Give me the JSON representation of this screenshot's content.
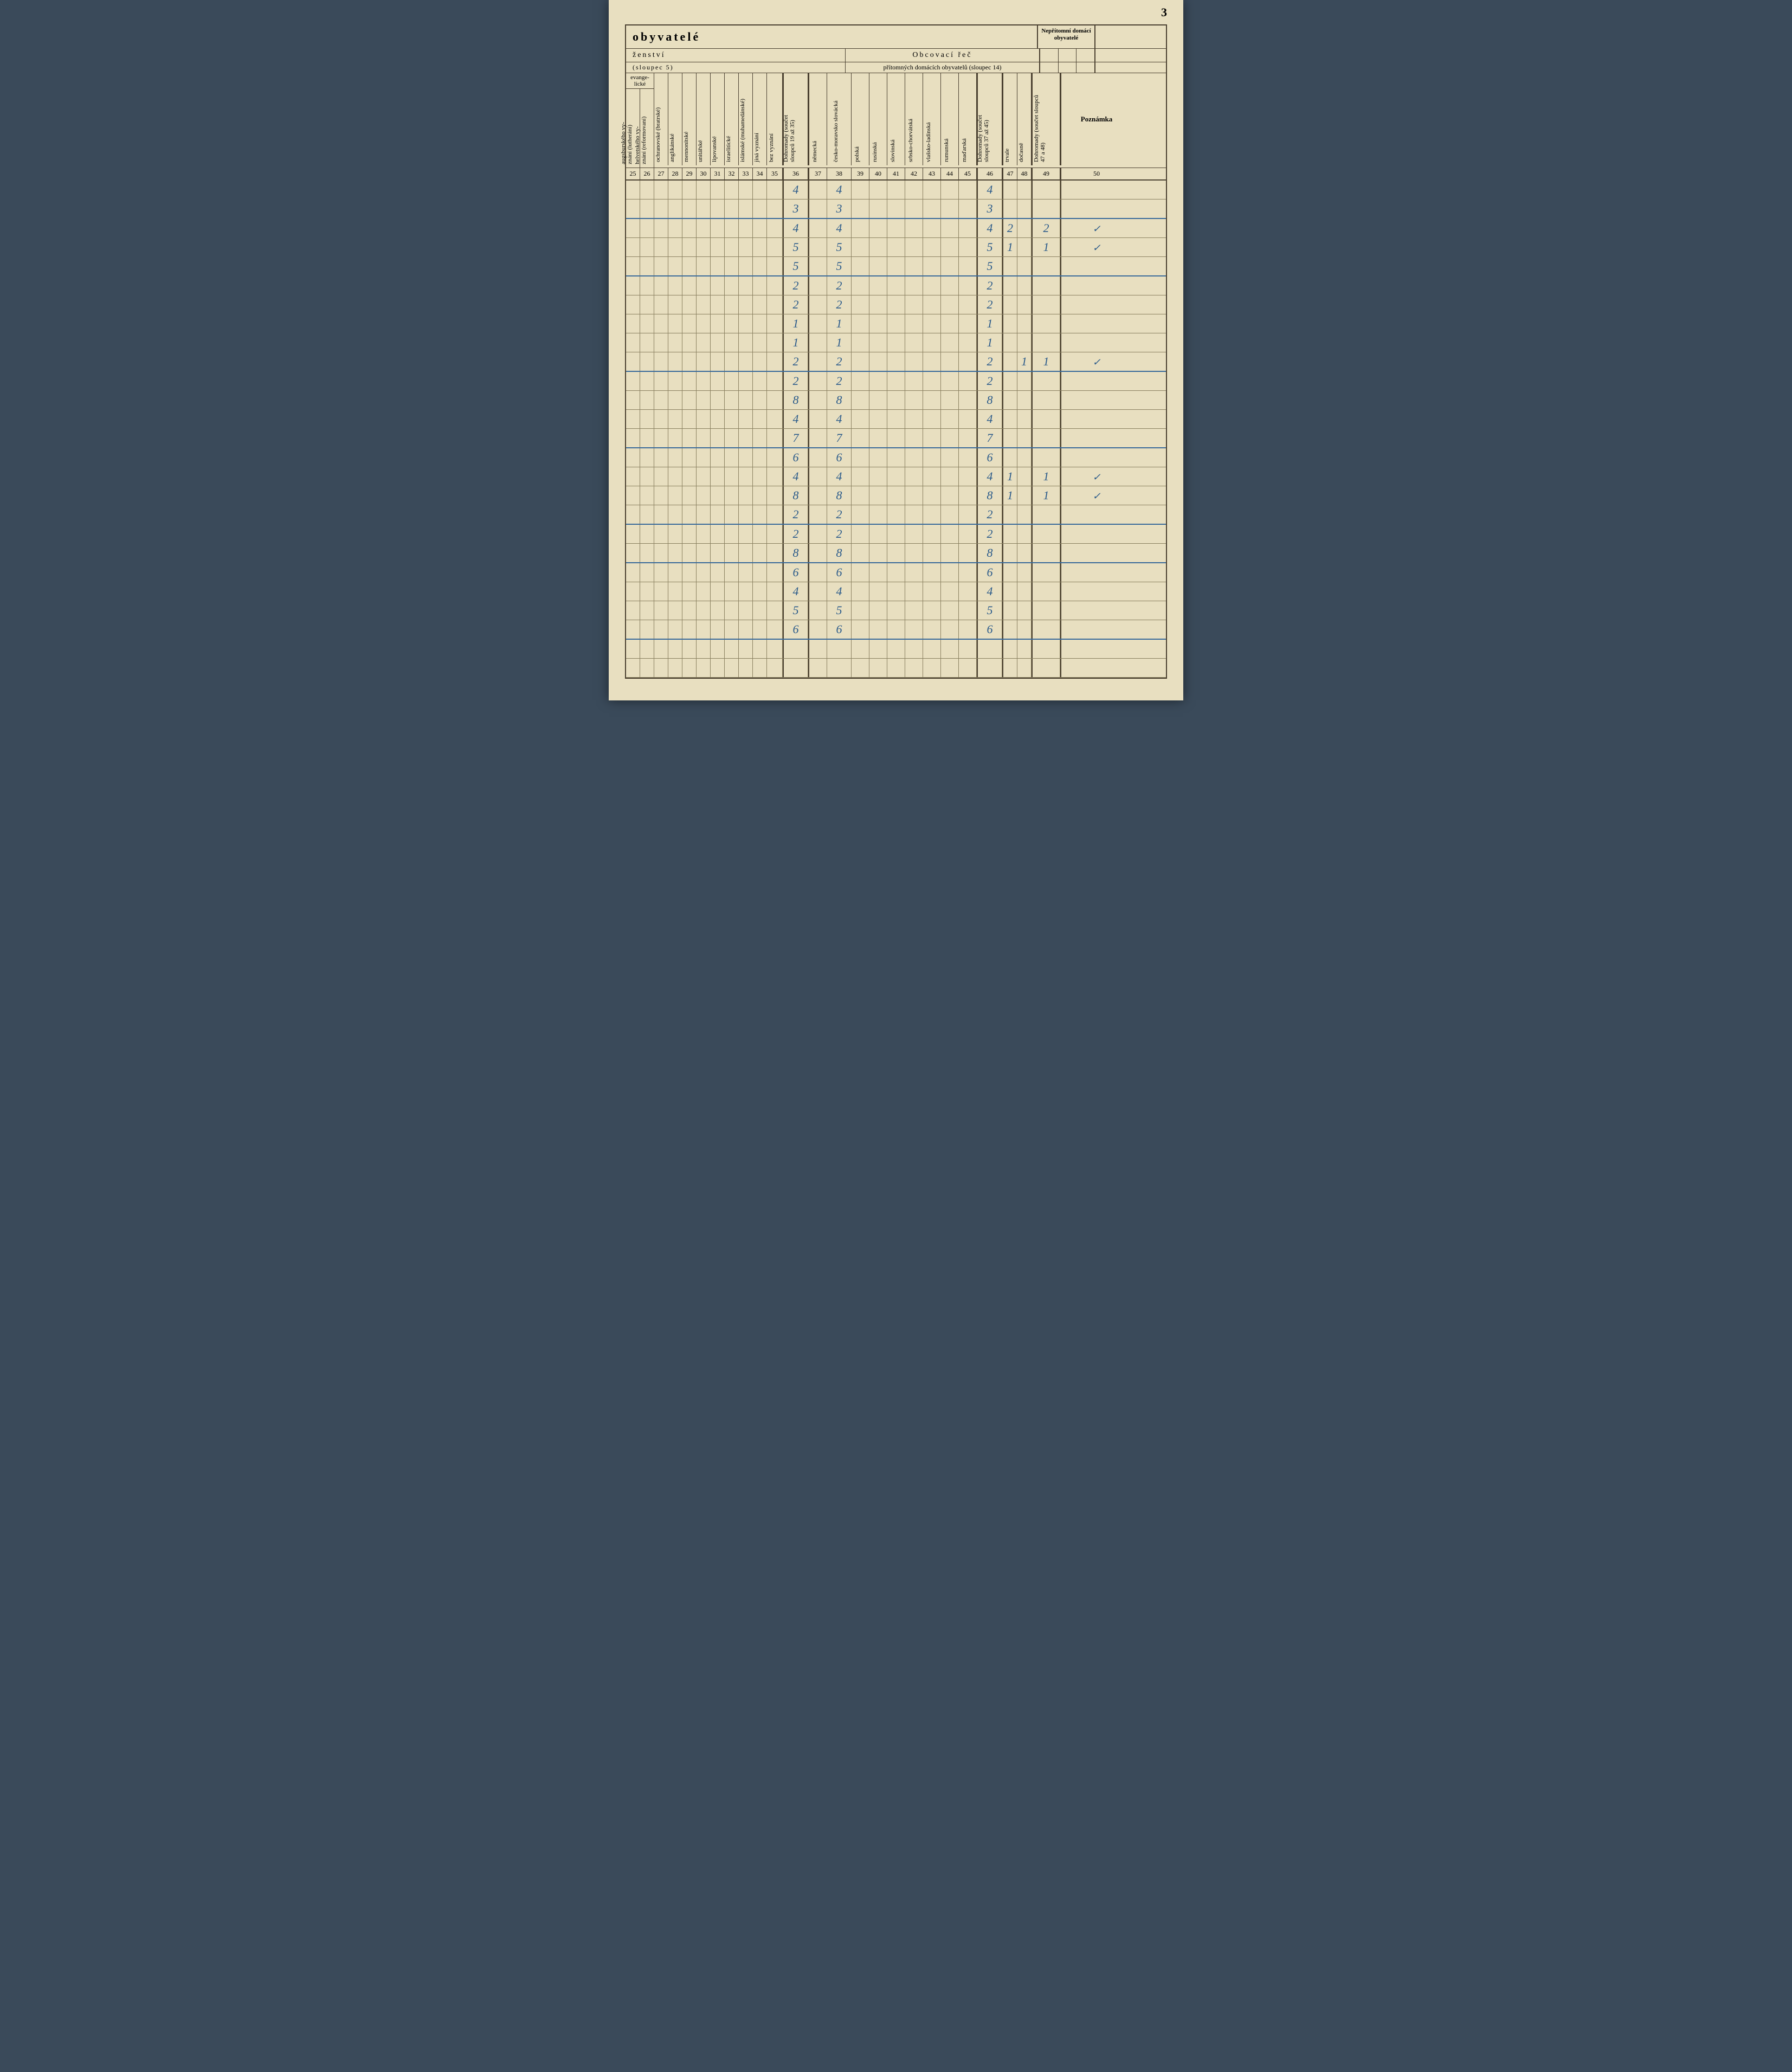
{
  "page_number": "3",
  "title": "obyvatelé",
  "section_left": "ženství",
  "section_right": "Obcovací řeč",
  "absent_title": "Nepřítomní domácí obyvatelé",
  "note_title": "Poznámka",
  "sloupec_left": "(sloupec 5)",
  "sloupec_right": "přítomných domácích obyvatelů (sloupec 14)",
  "evang_label": "evange-\nlické",
  "nepr_label": "ne-\npřítomní",
  "headers": {
    "c25": "augsburského vy-\nznání (lutheráni)",
    "c26": "helvetského vy-\nznání (reformovaní)",
    "c27": "ochranovské (bratrské)",
    "c28": "anglikánské",
    "c29": "mennonítské",
    "c30": "unitářské",
    "c31": "lipovanské",
    "c32": "israelitické",
    "c33": "islámské (muhamedánské)",
    "c34": "jiná vyznání",
    "c35": "bez vyznání",
    "c36": "Dohromady (součet\nsloupců 19 až 35)",
    "c37": "německá",
    "c38": "česko-moravsko slovácká",
    "c39": "polská",
    "c40": "rusínská",
    "c41": "slovinská",
    "c42": "srbsko-chorvátská",
    "c43": "vlašsko-ladinská",
    "c44": "rumunská",
    "c45": "maďarská",
    "c46": "Dohromady (součet\nsloupců 37 až 45)",
    "c47": "trvale",
    "c48": "dočasně",
    "c49": "Dohromady (součet sloupců\n47 a 48)"
  },
  "col_nums": [
    "25",
    "26",
    "27",
    "28",
    "29",
    "30",
    "31",
    "32",
    "33",
    "34",
    "35",
    "36",
    "37",
    "38",
    "39",
    "40",
    "41",
    "42",
    "43",
    "44",
    "45",
    "46",
    "47",
    "48",
    "49",
    "50"
  ],
  "rows": [
    {
      "c36": "4",
      "c38": "4",
      "c46": "4",
      "thick": false
    },
    {
      "c36": "3",
      "c38": "3",
      "c46": "3",
      "thick": true
    },
    {
      "c36": "4",
      "c38": "4",
      "c46": "4",
      "c47": "2",
      "c49": "2",
      "c50": "✓",
      "thick": false
    },
    {
      "c36": "5",
      "c38": "5",
      "c46": "5",
      "c47": "1",
      "c49": "1",
      "c50": "✓",
      "thick": false
    },
    {
      "c36": "5",
      "c38": "5",
      "c46": "5",
      "thick": true
    },
    {
      "c36": "2",
      "c38": "2",
      "c46": "2",
      "thick": false
    },
    {
      "c36": "2",
      "c38": "2",
      "c46": "2",
      "thick": false
    },
    {
      "c36": "1",
      "c38": "1",
      "c46": "1",
      "thick": false
    },
    {
      "c36": "1",
      "c38": "1",
      "c46": "1",
      "thick": false
    },
    {
      "c36": "2",
      "c38": "2",
      "c46": "2",
      "c48": "1",
      "c49": "1",
      "c50": "✓",
      "thick": true
    },
    {
      "c36": "2",
      "c38": "2",
      "c46": "2",
      "thick": false
    },
    {
      "c36": "8",
      "c38": "8",
      "c46": "8",
      "thick": false
    },
    {
      "c36": "4",
      "c38": "4",
      "c46": "4",
      "thick": false
    },
    {
      "c36": "7",
      "c38": "7",
      "c46": "7",
      "thick": true
    },
    {
      "c36": "6",
      "c38": "6",
      "c46": "6",
      "thick": false
    },
    {
      "c36": "4",
      "c38": "4",
      "c46": "4",
      "c47": "1",
      "c49": "1",
      "c50": "✓",
      "thick": false
    },
    {
      "c36": "8",
      "c38": "8",
      "c46": "8",
      "c47": "1",
      "c49": "1",
      "c50": "✓",
      "thick": false
    },
    {
      "c36": "2",
      "c38": "2",
      "c46": "2",
      "thick": true
    },
    {
      "c36": "2",
      "c38": "2",
      "c46": "2",
      "thick": false
    },
    {
      "c36": "8",
      "c38": "8",
      "c46": "8",
      "thick": true
    },
    {
      "c36": "6",
      "c38": "6",
      "c46": "6",
      "thick": false
    },
    {
      "c36": "4",
      "c38": "4",
      "c46": "4",
      "thick": false
    },
    {
      "c36": "5",
      "c38": "5",
      "c46": "5",
      "thick": false
    },
    {
      "c36": "6",
      "c38": "6",
      "c46": "6",
      "thick": true
    },
    {
      "thick": false
    },
    {
      "thick": false
    }
  ],
  "col_widths": {
    "25": 25,
    "26": 25,
    "27": 25,
    "28": 25,
    "29": 25,
    "30": 25,
    "31": 25,
    "32": 25,
    "33": 25,
    "34": 25,
    "35": 28,
    "36": 44,
    "37": 32,
    "38": 44,
    "39": 32,
    "40": 32,
    "41": 32,
    "42": 32,
    "43": 32,
    "44": 32,
    "45": 32,
    "46": 44,
    "47": 25,
    "48": 25,
    "49": 50,
    "50": 130
  },
  "thick_left_cols": [
    "36",
    "37",
    "46",
    "47",
    "49",
    "50"
  ]
}
